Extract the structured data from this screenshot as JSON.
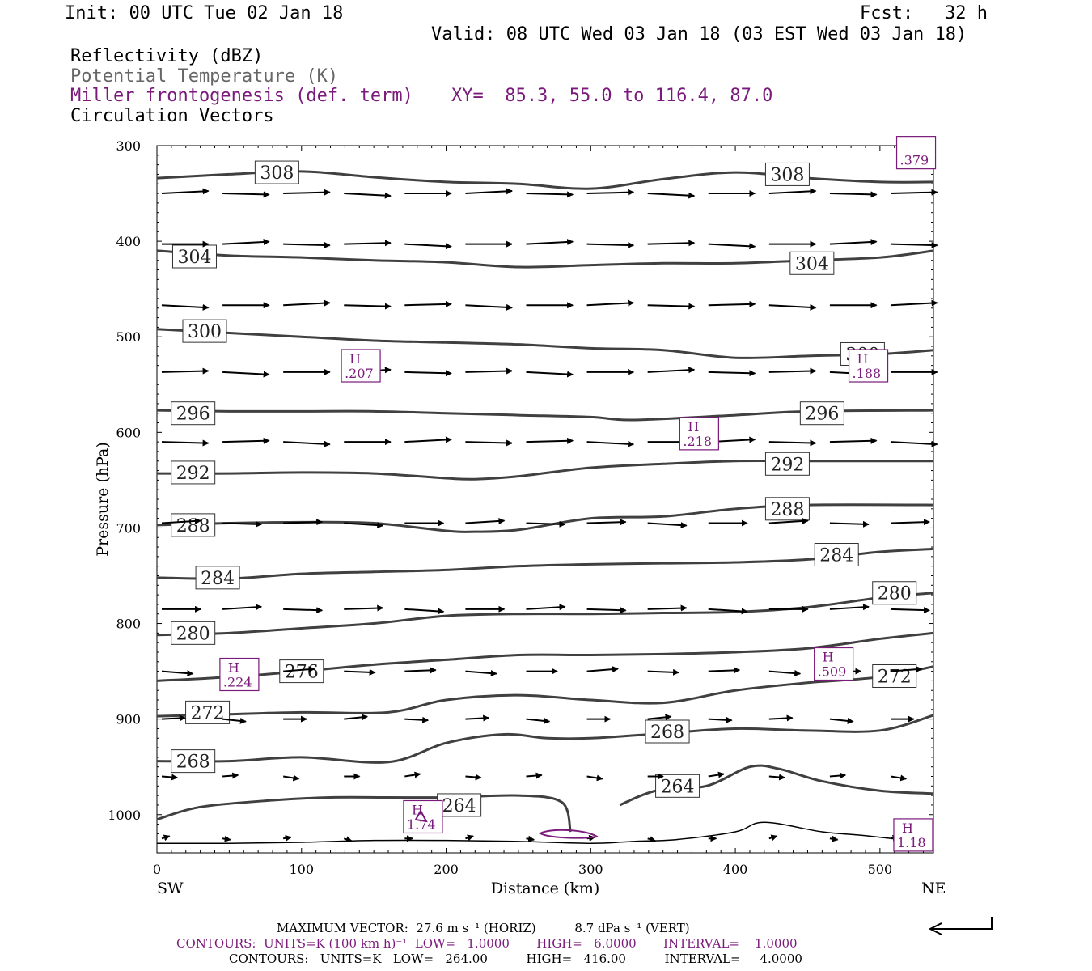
{
  "header": {
    "init": "Init: 00 UTC Tue 02 Jan 18",
    "fcst_label": "Fcst:",
    "fcst_value": "32 h",
    "valid": "Valid: 08 UTC Wed 03 Jan 18 (03 EST Wed 03 Jan 18)",
    "field1": "Reflectivity (dBZ)",
    "field2": "Potential Temperature (K)",
    "field3": "Miller frontogenesis (def. term)",
    "xy": "XY=  85.3, 55.0 to 116.4, 87.0",
    "field4": "Circulation Vectors"
  },
  "colors": {
    "purple": "#7a1a7a",
    "theta": "#404040",
    "vector": "#000000",
    "gray_text": "#666666"
  },
  "chart_data": {
    "type": "line",
    "xlabel": "Distance (km)",
    "ylabel": "Pressure (hPa)",
    "xlim": [
      0,
      537
    ],
    "ylim": [
      1040,
      300
    ],
    "xticks": [
      0,
      100,
      200,
      300,
      400,
      500
    ],
    "yticks": [
      300,
      400,
      500,
      600,
      700,
      800,
      900,
      1000
    ],
    "x_end_labels": {
      "left": "SW",
      "right": "NE"
    },
    "isentropes": [
      {
        "label": "308",
        "pts": [
          [
            0,
            334
          ],
          [
            50,
            330
          ],
          [
            100,
            327
          ],
          [
            150,
            333
          ],
          [
            200,
            338
          ],
          [
            250,
            340
          ],
          [
            300,
            345
          ],
          [
            350,
            335
          ],
          [
            400,
            328
          ],
          [
            450,
            334
          ],
          [
            500,
            338
          ],
          [
            537,
            338
          ]
        ],
        "labels_at": [
          [
            83,
            328
          ],
          [
            436,
            330
          ]
        ]
      },
      {
        "label": "304",
        "pts": [
          [
            0,
            410
          ],
          [
            50,
            415
          ],
          [
            100,
            417
          ],
          [
            150,
            420
          ],
          [
            200,
            422
          ],
          [
            250,
            427
          ],
          [
            300,
            425
          ],
          [
            350,
            423
          ],
          [
            400,
            423
          ],
          [
            450,
            420
          ],
          [
            500,
            417
          ],
          [
            537,
            410
          ]
        ],
        "labels_at": [
          [
            26,
            416
          ],
          [
            453,
            423
          ]
        ]
      },
      {
        "label": "300",
        "pts": [
          [
            0,
            492
          ],
          [
            50,
            496
          ],
          [
            100,
            500
          ],
          [
            150,
            504
          ],
          [
            200,
            506
          ],
          [
            250,
            508
          ],
          [
            300,
            512
          ],
          [
            350,
            514
          ],
          [
            400,
            522
          ],
          [
            450,
            520
          ],
          [
            500,
            518
          ],
          [
            537,
            514
          ]
        ],
        "labels_at": [
          [
            33,
            494
          ],
          [
            488,
            518
          ]
        ]
      },
      {
        "label": "296",
        "pts": [
          [
            0,
            577
          ],
          [
            50,
            578
          ],
          [
            100,
            578
          ],
          [
            150,
            578
          ],
          [
            200,
            580
          ],
          [
            250,
            582
          ],
          [
            300,
            584
          ],
          [
            330,
            587
          ],
          [
            400,
            582
          ],
          [
            450,
            578
          ],
          [
            537,
            577
          ]
        ],
        "labels_at": [
          [
            25,
            580
          ],
          [
            460,
            580
          ]
        ]
      },
      {
        "label": "292",
        "pts": [
          [
            0,
            643
          ],
          [
            50,
            643
          ],
          [
            100,
            642
          ],
          [
            150,
            643
          ],
          [
            200,
            648
          ],
          [
            220,
            649
          ],
          [
            250,
            646
          ],
          [
            300,
            637
          ],
          [
            350,
            633
          ],
          [
            400,
            630
          ],
          [
            450,
            630
          ],
          [
            537,
            630
          ]
        ],
        "labels_at": [
          [
            25,
            642
          ],
          [
            436,
            633
          ]
        ]
      },
      {
        "label": "288",
        "pts": [
          [
            0,
            697
          ],
          [
            50,
            695
          ],
          [
            100,
            694
          ],
          [
            150,
            695
          ],
          [
            200,
            703
          ],
          [
            220,
            704
          ],
          [
            250,
            702
          ],
          [
            300,
            690
          ],
          [
            350,
            688
          ],
          [
            400,
            680
          ],
          [
            450,
            676
          ],
          [
            537,
            676
          ]
        ],
        "labels_at": [
          [
            25,
            697
          ],
          [
            436,
            680
          ]
        ]
      },
      {
        "label": "284",
        "pts": [
          [
            0,
            752
          ],
          [
            50,
            753
          ],
          [
            100,
            748
          ],
          [
            150,
            746
          ],
          [
            200,
            744
          ],
          [
            250,
            740
          ],
          [
            300,
            738
          ],
          [
            350,
            737
          ],
          [
            400,
            736
          ],
          [
            450,
            733
          ],
          [
            500,
            725
          ],
          [
            537,
            722
          ]
        ],
        "labels_at": [
          [
            42,
            752
          ],
          [
            470,
            728
          ]
        ]
      },
      {
        "label": "280",
        "pts": [
          [
            0,
            812
          ],
          [
            50,
            810
          ],
          [
            100,
            805
          ],
          [
            150,
            800
          ],
          [
            200,
            792
          ],
          [
            250,
            790
          ],
          [
            300,
            790
          ],
          [
            350,
            789
          ],
          [
            400,
            788
          ],
          [
            450,
            783
          ],
          [
            500,
            773
          ],
          [
            537,
            768
          ]
        ],
        "labels_at": [
          [
            25,
            810
          ],
          [
            510,
            768
          ]
        ]
      },
      {
        "label": "276",
        "pts": [
          [
            0,
            860
          ],
          [
            50,
            856
          ],
          [
            100,
            850
          ],
          [
            150,
            843
          ],
          [
            200,
            838
          ],
          [
            250,
            833
          ],
          [
            300,
            833
          ],
          [
            350,
            832
          ],
          [
            400,
            830
          ],
          [
            450,
            826
          ],
          [
            500,
            816
          ],
          [
            537,
            810
          ]
        ],
        "labels_at": [
          [
            100,
            850
          ]
        ]
      },
      {
        "label": "272",
        "pts": [
          [
            0,
            897
          ],
          [
            50,
            895
          ],
          [
            100,
            893
          ],
          [
            160,
            893
          ],
          [
            200,
            880
          ],
          [
            250,
            875
          ],
          [
            300,
            880
          ],
          [
            350,
            883
          ],
          [
            400,
            870
          ],
          [
            450,
            862
          ],
          [
            500,
            856
          ],
          [
            537,
            845
          ]
        ],
        "labels_at": [
          [
            35,
            893
          ],
          [
            510,
            855
          ]
        ]
      },
      {
        "label": "268",
        "pts": [
          [
            0,
            944
          ],
          [
            50,
            944
          ],
          [
            100,
            940
          ],
          [
            160,
            945
          ],
          [
            200,
            925
          ],
          [
            240,
            916
          ],
          [
            270,
            920
          ],
          [
            300,
            920
          ],
          [
            350,
            915
          ],
          [
            400,
            910
          ],
          [
            450,
            912
          ],
          [
            500,
            912
          ],
          [
            537,
            896
          ]
        ],
        "labels_at": [
          [
            25,
            944
          ],
          [
            353,
            913
          ]
        ]
      },
      {
        "label": "264",
        "pts": [
          [
            0,
            1005
          ],
          [
            30,
            992
          ],
          [
            80,
            985
          ],
          [
            120,
            982
          ],
          [
            160,
            982
          ],
          [
            200,
            982
          ],
          [
            250,
            980
          ],
          [
            280,
            987
          ],
          [
            286,
            1018
          ]
        ],
        "labels_at": [
          [
            209,
            990
          ]
        ]
      },
      {
        "label": "264",
        "pts": [
          [
            320,
            990
          ],
          [
            345,
            975
          ],
          [
            380,
            970
          ],
          [
            410,
            950
          ],
          [
            430,
            952
          ],
          [
            460,
            965
          ],
          [
            500,
            975
          ],
          [
            537,
            978
          ]
        ],
        "labels_at": [
          [
            360,
            970
          ]
        ]
      }
    ],
    "ground_curve": [
      [
        0,
        1030
      ],
      [
        50,
        1030
      ],
      [
        100,
        1029
      ],
      [
        150,
        1027
      ],
      [
        200,
        1027
      ],
      [
        250,
        1028
      ],
      [
        300,
        1030
      ],
      [
        330,
        1028
      ],
      [
        360,
        1026
      ],
      [
        400,
        1018
      ],
      [
        420,
        1008
      ],
      [
        460,
        1018
      ],
      [
        490,
        1022
      ],
      [
        537,
        1030
      ]
    ],
    "fronto_highs": [
      {
        "label": "H",
        "value": ".207",
        "x": 141,
        "p": 532
      },
      {
        "label": "H",
        "value": ".188",
        "x": 492,
        "p": 532
      },
      {
        "label": "H",
        "value": ".218",
        "x": 375,
        "p": 603
      },
      {
        "label": "H",
        "value": ".224",
        "x": 57,
        "p": 855
      },
      {
        "label": "H",
        "value": ".509",
        "x": 468,
        "p": 844
      },
      {
        "label": "H",
        "value": "1.74",
        "x": 184,
        "p": 1004
      },
      {
        "label": "H",
        "value": "1.18",
        "x": 523,
        "p": 1023
      },
      {
        "label": "",
        "value": ".379",
        "x": 525,
        "p": 309
      }
    ],
    "vector_rows": [
      {
        "p": 350,
        "dx": 0.06,
        "dy": 0.0
      },
      {
        "p": 403,
        "dx": 0.06,
        "dy": 0.0
      },
      {
        "p": 467,
        "dx": 0.06,
        "dy": 0.0
      },
      {
        "p": 537,
        "dx": 0.06,
        "dy": 0.0
      },
      {
        "p": 610,
        "dx": 0.06,
        "dy": 0.0
      },
      {
        "p": 695,
        "dx": 0.05,
        "dy": 0.0
      },
      {
        "p": 785,
        "dx": 0.05,
        "dy": 0.0
      },
      {
        "p": 850,
        "dx": 0.04,
        "dy": 0.0
      },
      {
        "p": 900,
        "dx": 0.03,
        "dy": 0.0
      },
      {
        "p": 960,
        "dx": 0.02,
        "dy": 0.0
      },
      {
        "p": 1025,
        "dx": 0.01,
        "dy": 0.0
      }
    ],
    "vector_x": [
      0,
      42,
      84,
      126,
      168,
      210,
      252,
      294,
      336,
      378,
      420,
      462,
      504
    ],
    "max_vector_text": "MAXIMUM VECTOR:  27.6 m s⁻¹ (HORIZ)          8.7 dPa s⁻¹ (VERT)",
    "contours_fronto": "CONTOURS:  UNITS=K (100 km h)⁻¹  LOW=   1.0000       HIGH=   6.0000       INTERVAL=    1.0000",
    "contours_theta": "CONTOURS:   UNITS=K   LOW=   264.00          HIGH=   416.00          INTERVAL=     4.0000"
  }
}
